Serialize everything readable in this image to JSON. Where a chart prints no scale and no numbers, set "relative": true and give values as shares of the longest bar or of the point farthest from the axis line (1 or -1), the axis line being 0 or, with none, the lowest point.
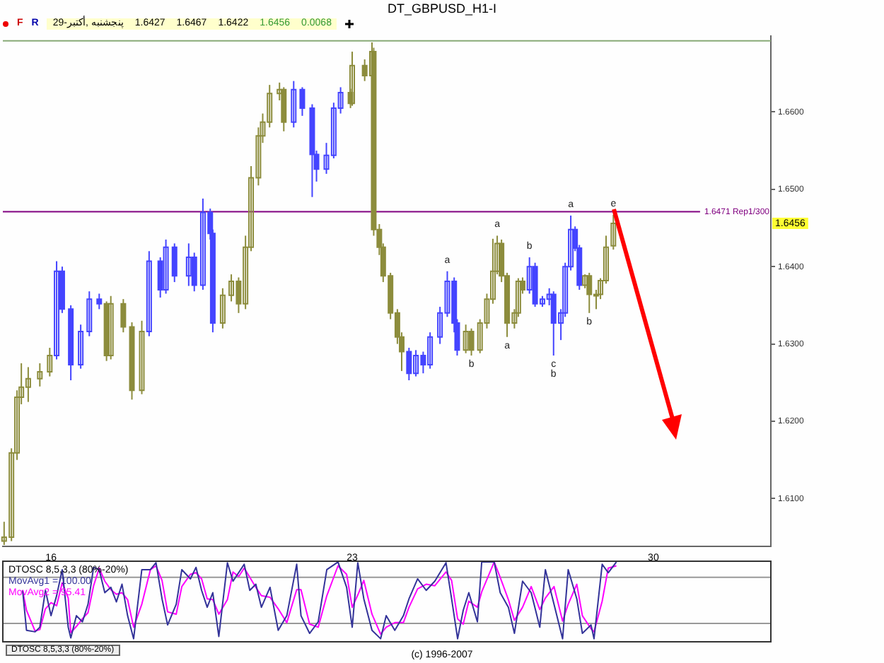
{
  "chart_data": [
    {
      "type": "candlestick",
      "title": "DT_GBPUSD_H1-I",
      "subtitle": "29-پنجشنبه ,أكتبر",
      "x": [
        14.91,
        15.08,
        15.21,
        15.31,
        15.47,
        15.74,
        15.97,
        16.13,
        16.26,
        16.46,
        16.69,
        16.89,
        17.12,
        17.29,
        17.39,
        17.68,
        17.88,
        18.11,
        18.28,
        18.54,
        18.67,
        18.87,
        19.2,
        19.33,
        19.53,
        19.7,
        19.76,
        19.99,
        20.19,
        20.36,
        20.52,
        20.65,
        20.82,
        20.92,
        21.08,
        21.31,
        21.41,
        21.64,
        21.84,
        22.07,
        22.17,
        22.4,
        22.57,
        22.73,
        22.96,
        23.0,
        23.29,
        23.46,
        23.5,
        23.63,
        23.72,
        23.89,
        24.05,
        24.15,
        24.32,
        24.48,
        24.65,
        24.81,
        25.04,
        25.21,
        25.37,
        25.44,
        25.64,
        25.77,
        25.97,
        26.13,
        26.27,
        26.37,
        26.47,
        26.6,
        26.77,
        26.86,
        26.96,
        27.12,
        27.25,
        27.42,
        27.58,
        27.68,
        27.85,
        27.95,
        28.08,
        28.18,
        28.28,
        28.41,
        28.51,
        28.67,
        28.77,
        28.9,
        29.07
      ],
      "ohlc": [
        [
          1.6045,
          1.607,
          1.604,
          1.605
        ],
        [
          1.605,
          1.6165,
          1.6045,
          1.6159
        ],
        [
          1.6159,
          1.624,
          1.615,
          1.6231
        ],
        [
          1.6231,
          1.6275,
          1.6222,
          1.6244
        ],
        [
          1.6244,
          1.627,
          1.6225,
          1.6255
        ],
        [
          1.6255,
          1.6275,
          1.6245,
          1.6264
        ],
        [
          1.6264,
          1.6295,
          1.6258,
          1.6285
        ],
        [
          1.6285,
          1.6407,
          1.628,
          1.6394
        ],
        [
          1.6394,
          1.64,
          1.634,
          1.6345
        ],
        [
          1.6345,
          1.635,
          1.6253,
          1.6273
        ],
        [
          1.6273,
          1.6325,
          1.6268,
          1.6316
        ],
        [
          1.6316,
          1.6368,
          1.631,
          1.6358
        ],
        [
          1.6358,
          1.6365,
          1.6345,
          1.6352
        ],
        [
          1.6352,
          1.6355,
          1.6278,
          1.6285
        ],
        [
          1.6285,
          1.6362,
          1.628,
          1.6352
        ],
        [
          1.6352,
          1.6358,
          1.6315,
          1.6322
        ],
        [
          1.6322,
          1.6328,
          1.6228,
          1.624
        ],
        [
          1.624,
          1.633,
          1.6235,
          1.6316
        ],
        [
          1.6316,
          1.642,
          1.631,
          1.6407
        ],
        [
          1.6407,
          1.6412,
          1.636,
          1.637
        ],
        [
          1.637,
          1.6435,
          1.6365,
          1.6425
        ],
        [
          1.6425,
          1.643,
          1.638,
          1.6388
        ],
        [
          1.6388,
          1.643,
          1.6375,
          1.6412
        ],
        [
          1.6412,
          1.6418,
          1.6368,
          1.6376
        ],
        [
          1.6376,
          1.6488,
          1.637,
          1.647
        ],
        [
          1.647,
          1.6475,
          1.6435,
          1.6443
        ],
        [
          1.6443,
          1.6448,
          1.6315,
          1.6327
        ],
        [
          1.6327,
          1.6372,
          1.632,
          1.6363
        ],
        [
          1.6363,
          1.639,
          1.6355,
          1.6381
        ],
        [
          1.6381,
          1.6386,
          1.634,
          1.6352
        ],
        [
          1.6352,
          1.644,
          1.6345,
          1.6425
        ],
        [
          1.6425,
          1.653,
          1.642,
          1.6515
        ],
        [
          1.6515,
          1.658,
          1.6505,
          1.6569
        ],
        [
          1.6569,
          1.6598,
          1.656,
          1.6587
        ],
        [
          1.6587,
          1.6635,
          1.658,
          1.6624
        ],
        [
          1.6624,
          1.6638,
          1.6615,
          1.6629
        ],
        [
          1.6629,
          1.6632,
          1.6575,
          1.6587
        ],
        [
          1.6587,
          1.664,
          1.658,
          1.6629
        ],
        [
          1.6629,
          1.6632,
          1.6595,
          1.6605
        ],
        [
          1.6605,
          1.661,
          1.649,
          1.6545
        ],
        [
          1.6545,
          1.655,
          1.651,
          1.6526
        ],
        [
          1.6526,
          1.656,
          1.652,
          1.6544
        ],
        [
          1.6544,
          1.6612,
          1.654,
          1.6605
        ],
        [
          1.6605,
          1.6632,
          1.6598,
          1.6625
        ],
        [
          1.6625,
          1.663,
          1.6605,
          1.6611
        ],
        [
          1.6611,
          1.6678,
          1.6608,
          1.666
        ],
        [
          1.666,
          1.6668,
          1.664,
          1.6647
        ],
        [
          1.6647,
          1.669,
          1.6642,
          1.6678
        ],
        [
          1.6678,
          1.6683,
          1.644,
          1.6448
        ],
        [
          1.6448,
          1.6455,
          1.6415,
          1.6425
        ],
        [
          1.6425,
          1.643,
          1.638,
          1.6388
        ],
        [
          1.6388,
          1.6392,
          1.6332,
          1.634
        ],
        [
          1.634,
          1.6345,
          1.63,
          1.6309
        ],
        [
          1.6309,
          1.6315,
          1.6265,
          1.629
        ],
        [
          1.629,
          1.6295,
          1.6253,
          1.6262
        ],
        [
          1.6262,
          1.6292,
          1.6258,
          1.6285
        ],
        [
          1.6285,
          1.629,
          1.6262,
          1.6273
        ],
        [
          1.6273,
          1.6315,
          1.6268,
          1.6309
        ],
        [
          1.6309,
          1.6348,
          1.63,
          1.634
        ],
        [
          1.634,
          1.6394,
          1.6335,
          1.6381
        ],
        [
          1.6381,
          1.6386,
          1.6315,
          1.6327
        ],
        [
          1.6327,
          1.6332,
          1.6285,
          1.6292
        ],
        [
          1.6292,
          1.6325,
          1.6288,
          1.6316
        ],
        [
          1.6316,
          1.632,
          1.6285,
          1.6292
        ],
        [
          1.6292,
          1.6332,
          1.6288,
          1.6327
        ],
        [
          1.6327,
          1.6365,
          1.632,
          1.6358
        ],
        [
          1.6358,
          1.6436,
          1.6352,
          1.6394
        ],
        [
          1.6394,
          1.644,
          1.639,
          1.643
        ],
        [
          1.643,
          1.6435,
          1.638,
          1.6388
        ],
        [
          1.6388,
          1.6392,
          1.6309,
          1.6327
        ],
        [
          1.6327,
          1.6345,
          1.632,
          1.634
        ],
        [
          1.634,
          1.6385,
          1.6335,
          1.6381
        ],
        [
          1.6381,
          1.6386,
          1.6365,
          1.637
        ],
        [
          1.637,
          1.6412,
          1.6365,
          1.64
        ],
        [
          1.64,
          1.6405,
          1.6348,
          1.6352
        ],
        [
          1.6352,
          1.6362,
          1.6348,
          1.6358
        ],
        [
          1.6358,
          1.6372,
          1.635,
          1.6364
        ],
        [
          1.6364,
          1.6368,
          1.6285,
          1.6327
        ],
        [
          1.6327,
          1.6345,
          1.6305,
          1.634
        ],
        [
          1.634,
          1.6405,
          1.6335,
          1.64
        ],
        [
          1.64,
          1.6466,
          1.6395,
          1.6448
        ],
        [
          1.6448,
          1.6452,
          1.642,
          1.6424
        ],
        [
          1.6424,
          1.6428,
          1.637,
          1.6376
        ],
        [
          1.6376,
          1.639,
          1.6372,
          1.6388
        ],
        [
          1.6388,
          1.6392,
          1.634,
          1.6364
        ],
        [
          1.6364,
          1.637,
          1.6345,
          1.6364
        ],
        [
          1.6364,
          1.6385,
          1.6358,
          1.6382
        ],
        [
          1.6382,
          1.644,
          1.6378,
          1.6425
        ],
        [
          1.6427,
          1.6467,
          1.6422,
          1.6456
        ]
      ],
      "colors": [
        "#8c8c3c",
        "#8c8c3c",
        "#8c8c3c",
        "#8c8c3c",
        "#8c8c3c",
        "#8c8c3c",
        "#8c8c3c",
        "#4444ff",
        "#4444ff",
        "#4444ff",
        "#4444ff",
        "#4444ff",
        "#4444ff",
        "#8c8c3c",
        "#8c8c3c",
        "#8c8c3c",
        "#8c8c3c",
        "#8c8c3c",
        "#4444ff",
        "#4444ff",
        "#4444ff",
        "#4444ff",
        "#4444ff",
        "#4444ff",
        "#4444ff",
        "#4444ff",
        "#4444ff",
        "#8c8c3c",
        "#8c8c3c",
        "#8c8c3c",
        "#8c8c3c",
        "#8c8c3c",
        "#8c8c3c",
        "#8c8c3c",
        "#8c8c3c",
        "#8c8c3c",
        "#8c8c3c",
        "#4444ff",
        "#4444ff",
        "#4444ff",
        "#4444ff",
        "#4444ff",
        "#4444ff",
        "#4444ff",
        "#8c8c3c",
        "#8c8c3c",
        "#8c8c3c",
        "#8c8c3c",
        "#8c8c3c",
        "#8c8c3c",
        "#8c8c3c",
        "#8c8c3c",
        "#8c8c3c",
        "#8c8c3c",
        "#4444ff",
        "#4444ff",
        "#4444ff",
        "#4444ff",
        "#4444ff",
        "#4444ff",
        "#4444ff",
        "#4444ff",
        "#8c8c3c",
        "#8c8c3c",
        "#8c8c3c",
        "#8c8c3c",
        "#8c8c3c",
        "#8c8c3c",
        "#8c8c3c",
        "#8c8c3c",
        "#8c8c3c",
        "#8c8c3c",
        "#8c8c3c",
        "#4444ff",
        "#4444ff",
        "#4444ff",
        "#4444ff",
        "#4444ff",
        "#4444ff",
        "#4444ff",
        "#4444ff",
        "#4444ff",
        "#4444ff",
        "#8c8c3c",
        "#8c8c3c",
        "#8c8c3c",
        "#8c8c3c",
        "#8c8c3c",
        "#8c8c3c"
      ],
      "xlim": [
        14.88,
        32.73
      ],
      "xticks": [
        16,
        23,
        30
      ],
      "ylim": [
        1.6038,
        1.6698
      ],
      "yticks": [
        {
          "value": 1.61,
          "label": "1.6100"
        },
        {
          "value": 1.62,
          "label": "1.6200"
        },
        {
          "value": 1.63,
          "label": "1.6300"
        },
        {
          "value": 1.64,
          "label": "1.6400"
        },
        {
          "value": 1.65,
          "label": "1.6500"
        },
        {
          "value": 1.66,
          "label": "1.6600"
        }
      ],
      "ref_lines": [
        {
          "axis": "y",
          "value": 1.6471,
          "label": "1.6471 Rep1/300",
          "color": "#800080"
        },
        {
          "axis": "y",
          "value": 1.6692,
          "label": null,
          "color": "#88aa77"
        }
      ],
      "annotations": [
        "F",
        "R",
        "1.6427",
        "1.6467",
        "1.6422",
        "1.6456",
        "0.0068",
        {
          "text": "1.6456",
          "y": 1.6456
        },
        {
          "text": "a",
          "x": 25.21,
          "y": 1.6394
        },
        {
          "text": "b",
          "x": 25.77,
          "y": 1.6285
        },
        {
          "text": "a",
          "x": 26.37,
          "y": 1.644
        },
        {
          "text": "a",
          "x": 26.6,
          "y": 1.6309
        },
        {
          "text": "b",
          "x": 27.12,
          "y": 1.6412
        },
        {
          "text": "c",
          "x": 27.68,
          "y": 1.6285
        },
        {
          "text": "b",
          "x": 27.68,
          "y": 1.6285
        },
        {
          "text": "a",
          "x": 28.08,
          "y": 1.6466
        },
        {
          "text": "b",
          "x": 28.51,
          "y": 1.634
        },
        {
          "text": "e",
          "x": 29.07,
          "y": 1.6467
        }
      ]
    },
    {
      "type": "line",
      "title": "DTOSC 8,5,3,3 (80%-20%)",
      "relative": true,
      "tick_labels": false,
      "x": [
        15.34,
        15.43,
        15.63,
        15.74,
        15.87,
        16.0,
        16.13,
        16.26,
        16.4,
        16.46,
        16.59,
        16.73,
        16.86,
        16.99,
        17.12,
        17.25,
        17.39,
        17.52,
        17.65,
        17.78,
        17.92,
        18.11,
        18.31,
        18.44,
        18.58,
        18.71,
        18.91,
        19.04,
        19.24,
        19.37,
        19.5,
        19.63,
        19.76,
        19.9,
        20.1,
        20.23,
        20.36,
        20.49,
        20.62,
        20.76,
        20.89,
        21.09,
        21.28,
        21.48,
        21.71,
        21.81,
        22.01,
        22.21,
        22.41,
        22.67,
        22.87,
        23.0,
        23.13,
        23.27,
        23.46,
        23.66,
        23.79,
        23.99,
        24.19,
        24.32,
        24.52,
        24.72,
        24.92,
        25.18,
        25.31,
        25.45,
        25.58,
        25.71,
        25.91,
        26.01,
        26.3,
        26.44,
        26.63,
        26.77,
        26.96,
        27.16,
        27.36,
        27.49,
        27.69,
        27.89,
        28.02,
        28.22,
        28.35,
        28.55,
        28.62,
        28.81,
        28.95,
        29.14
      ],
      "series": [
        {
          "name": "MovAvg1 = 100.00",
          "color": "#333399",
          "values": [
            0.63,
            0.11,
            0.09,
            0.15,
            0.63,
            0.3,
            0.56,
            0.9,
            0.15,
            0.01,
            0.3,
            0.22,
            0.45,
            0.93,
            0.9,
            0.6,
            0.67,
            0.48,
            0.71,
            0.3,
            0,
            0.9,
            0.9,
            0.99,
            0.52,
            0.18,
            0.45,
            0.9,
            0.78,
            0.93,
            0.63,
            0.41,
            0.6,
            0.03,
            0.99,
            0.75,
            0.86,
            0.97,
            0.63,
            0.71,
            0.41,
            0.67,
            0.11,
            0.3,
            0.97,
            0.3,
            0.07,
            0.22,
            0.9,
            1,
            0.67,
            0.15,
            0.99,
            0.52,
            0.11,
            0,
            0.3,
            0.11,
            0.3,
            0.52,
            0.78,
            0.63,
            0.75,
            0.99,
            0.52,
            0,
            0.37,
            0.6,
            0.22,
            1,
            1,
            0.6,
            0.41,
            0.07,
            0.75,
            0.6,
            0.15,
            0.9,
            0.45,
            0,
            0.9,
            0.52,
            0.07,
            0.18,
            0,
            0.97,
            0.86,
            1
          ]
        },
        {
          "name": "MovAvg2 = 95.41",
          "color": "#ff00ff",
          "values": [
            0.63,
            0.37,
            0.1,
            0.12,
            0.39,
            0.47,
            0.43,
            0.73,
            0.53,
            0.08,
            0.16,
            0.26,
            0.34,
            0.69,
            0.92,
            0.75,
            0.64,
            0.58,
            0.6,
            0.51,
            0.15,
            0.45,
            0.9,
            0.95,
            0.76,
            0.35,
            0.32,
            0.68,
            0.84,
            0.86,
            0.78,
            0.52,
            0.51,
            0.32,
            0.51,
            0.87,
            0.81,
            0.92,
            0.8,
            0.67,
            0.56,
            0.54,
            0.39,
            0.21,
            0.64,
            0.64,
            0.19,
            0.15,
            0.56,
            0.95,
            0.84,
            0.41,
            0.57,
            0.76,
            0.32,
            0.06,
            0.15,
            0.21,
            0.21,
            0.41,
            0.65,
            0.71,
            0.69,
            0.87,
            0.76,
            0.26,
            0.19,
            0.49,
            0.41,
            0.61,
            1,
            0.8,
            0.51,
            0.24,
            0.41,
            0.68,
            0.38,
            0.53,
            0.68,
            0.23,
            0.45,
            0.71,
            0.3,
            0.13,
            0.09,
            0.49,
            0.92,
            0.95
          ]
        }
      ],
      "xlim": [
        14.88,
        32.73
      ],
      "xticks": [
        16,
        23,
        30
      ],
      "ref_lines": [
        {
          "axis": "y",
          "value": 0.8,
          "label": null,
          "color": "#999999"
        },
        {
          "axis": "y",
          "value": 0.2,
          "label": null,
          "color": "#999999"
        }
      ],
      "annotations": [
        "DTOSC 8,5,3,3 (80%-20%)",
        "(c) 1996-2007"
      ]
    }
  ]
}
